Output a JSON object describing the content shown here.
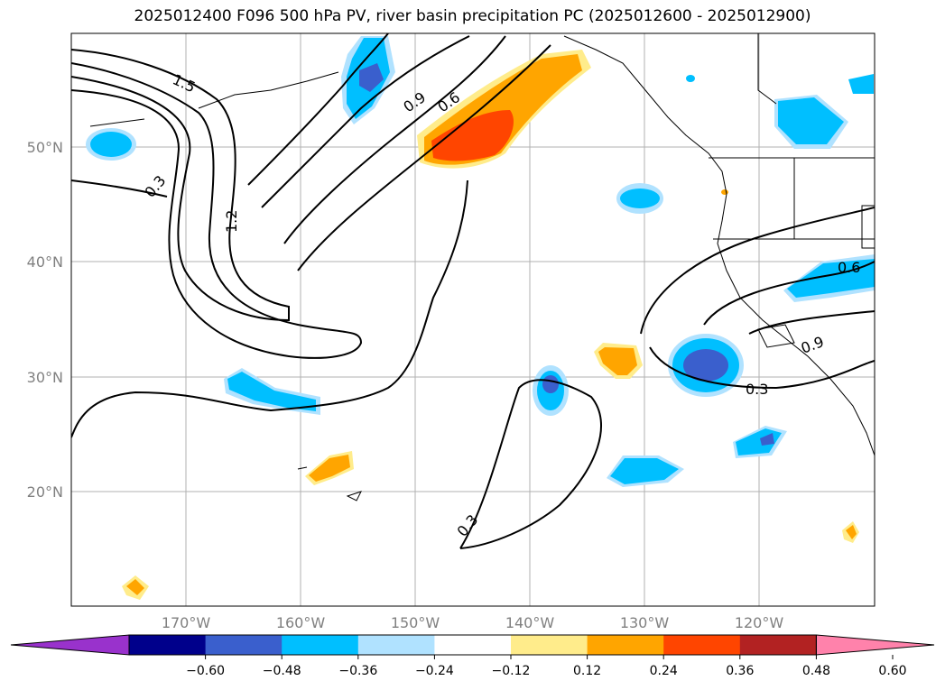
{
  "title": "2025012400 F096 500 hPa PV, river basin precipitation PC (2025012600 - 2025012900)",
  "map": {
    "lon_range": [
      -180,
      -110
    ],
    "lat_range": [
      10,
      60
    ],
    "grid": true,
    "lat_labels": [
      "50°N",
      "40°N",
      "30°N",
      "20°N"
    ],
    "lon_labels": [
      "170°W",
      "160°W",
      "150°W",
      "140°W",
      "130°W",
      "120°W"
    ],
    "pv_contour_labels": [
      "1.5",
      "0.3",
      "1.2",
      "0.9",
      "0.6",
      "0.6",
      "0.9",
      "0.3",
      "0.3"
    ]
  },
  "colorbar": {
    "colors": [
      "#9932cc",
      "#00008b",
      "#3a5fcd",
      "#00bfff",
      "#b0e2ff",
      "#ffffff",
      "#ffec8b",
      "#ffa500",
      "#ff4500",
      "#b22222",
      "#ff82ab"
    ],
    "tick_labels": [
      "−0.60",
      "−0.48",
      "−0.36",
      "−0.24",
      "−0.12",
      "0.12",
      "0.24",
      "0.36",
      "0.48",
      "0.60"
    ]
  }
}
